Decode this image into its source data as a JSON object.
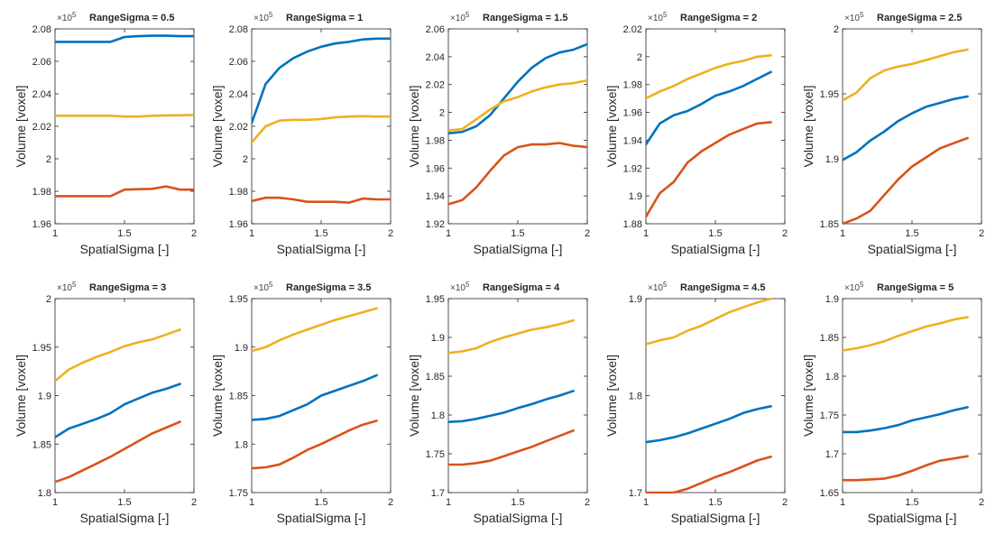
{
  "figure": {
    "background": "#ffffff"
  },
  "colors": {
    "series1": "#0072bd",
    "series2": "#edb120",
    "series3": "#d95319",
    "axis": "#262626"
  },
  "chart_data": [
    {
      "type": "line",
      "title": "RangeSigma = 0.5",
      "xlabel": "SpatialSigma [-]",
      "ylabel": "Volume [voxel]",
      "exponent_label": "×10^5",
      "xlim": [
        1,
        2
      ],
      "ylim": [
        1.96,
        2.08
      ],
      "xticks": [
        1,
        1.5,
        2
      ],
      "xtick_labels": [
        "1",
        "1.5",
        "2"
      ],
      "yticks": [
        1.96,
        1.98,
        2,
        2.02,
        2.04,
        2.06,
        2.08
      ],
      "ytick_labels": [
        "1.96",
        "1.98",
        "2",
        "2.02",
        "2.04",
        "2.06",
        "2.08"
      ],
      "x": [
        1,
        1.1,
        1.2,
        1.3,
        1.4,
        1.5,
        1.6,
        1.7,
        1.8,
        1.9,
        2
      ],
      "series": [
        {
          "color": "#0072bd",
          "values": [
            2.072,
            2.072,
            2.072,
            2.072,
            2.072,
            2.075,
            2.0755,
            2.0758,
            2.0758,
            2.0755,
            2.0755
          ]
        },
        {
          "color": "#edb120",
          "values": [
            2.0265,
            2.0265,
            2.0265,
            2.0265,
            2.0265,
            2.026,
            2.026,
            2.0265,
            2.0267,
            2.0268,
            2.027
          ]
        },
        {
          "color": "#d95319",
          "values": [
            1.977,
            1.977,
            1.977,
            1.977,
            1.977,
            1.981,
            1.9813,
            1.9815,
            1.983,
            1.981,
            1.981
          ]
        }
      ]
    },
    {
      "type": "line",
      "title": "RangeSigma = 1",
      "xlabel": "",
      "ylabel": "",
      "exponent_label": "×10^5",
      "xlim": [
        1,
        2
      ],
      "ylim": [
        1.96,
        2.08
      ],
      "xticks": [
        1,
        1.5,
        2
      ],
      "xtick_labels": [
        "1",
        "1.5",
        "2"
      ],
      "yticks": [
        1.96,
        1.98,
        2,
        2.02,
        2.04,
        2.06,
        2.08
      ],
      "ytick_labels": [
        "1.96",
        "1.98",
        "2",
        "2.02",
        "2.04",
        "2.06",
        "2.08"
      ],
      "x": [
        1,
        1.1,
        1.2,
        1.3,
        1.4,
        1.5,
        1.6,
        1.7,
        1.8,
        1.9,
        2
      ],
      "series": [
        {
          "color": "#0072bd",
          "values": [
            2.022,
            2.046,
            2.056,
            2.062,
            2.066,
            2.069,
            2.071,
            2.072,
            2.0735,
            2.074,
            2.074
          ]
        },
        {
          "color": "#edb120",
          "values": [
            2.01,
            2.02,
            2.0235,
            2.024,
            2.024,
            2.0245,
            2.0255,
            2.026,
            2.0262,
            2.026,
            2.026
          ]
        },
        {
          "color": "#d95319",
          "values": [
            1.974,
            1.976,
            1.976,
            1.975,
            1.9735,
            1.9735,
            1.9735,
            1.973,
            1.9755,
            1.975,
            1.975
          ]
        }
      ]
    },
    {
      "type": "line",
      "title": "RangeSigma = 1.5",
      "xlabel": "",
      "ylabel": "",
      "exponent_label": "×10^5",
      "xlim": [
        1,
        2
      ],
      "ylim": [
        1.92,
        2.06
      ],
      "xticks": [
        1,
        1.5,
        2
      ],
      "xtick_labels": [
        "1",
        "1.5",
        "2"
      ],
      "yticks": [
        1.92,
        1.94,
        1.96,
        1.98,
        2,
        2.02,
        2.04,
        2.06
      ],
      "ytick_labels": [
        "1.92",
        "1.94",
        "1.96",
        "1.98",
        "2",
        "2.02",
        "2.04",
        "2.06"
      ],
      "x": [
        1,
        1.1,
        1.2,
        1.3,
        1.4,
        1.5,
        1.6,
        1.7,
        1.8,
        1.9,
        2
      ],
      "series": [
        {
          "color": "#0072bd",
          "values": [
            1.985,
            1.986,
            1.99,
            1.998,
            2.01,
            2.022,
            2.032,
            2.039,
            2.043,
            2.045,
            2.049
          ]
        },
        {
          "color": "#edb120",
          "values": [
            1.987,
            1.988,
            1.995,
            2.002,
            2.008,
            2.011,
            2.015,
            2.018,
            2.02,
            2.021,
            2.023
          ]
        },
        {
          "color": "#d95319",
          "values": [
            1.934,
            1.937,
            1.946,
            1.958,
            1.969,
            1.975,
            1.977,
            1.977,
            1.978,
            1.976,
            1.975
          ]
        }
      ]
    },
    {
      "type": "line",
      "title": "RangeSigma = 2",
      "xlabel": "",
      "ylabel": "",
      "exponent_label": "×10^5",
      "xlim": [
        1,
        2
      ],
      "ylim": [
        1.88,
        2.02
      ],
      "xticks": [
        1,
        1.5,
        2
      ],
      "xtick_labels": [
        "1",
        "1.5",
        "2"
      ],
      "yticks": [
        1.88,
        1.9,
        1.92,
        1.94,
        1.96,
        1.98,
        2,
        2.02
      ],
      "ytick_labels": [
        "1.88",
        "1.9",
        "1.92",
        "1.94",
        "1.96",
        "1.98",
        "2",
        "2.02"
      ],
      "x": [
        1,
        1.1,
        1.2,
        1.3,
        1.4,
        1.5,
        1.6,
        1.7,
        1.8,
        1.9
      ],
      "series": [
        {
          "color": "#0072bd",
          "values": [
            1.937,
            1.952,
            1.958,
            1.961,
            1.966,
            1.972,
            1.975,
            1.979,
            1.984,
            1.989
          ]
        },
        {
          "color": "#edb120",
          "values": [
            1.97,
            1.975,
            1.979,
            1.984,
            1.988,
            1.992,
            1.995,
            1.997,
            2.0,
            2.001
          ]
        },
        {
          "color": "#d95319",
          "values": [
            1.885,
            1.902,
            1.91,
            1.924,
            1.932,
            1.938,
            1.944,
            1.948,
            1.952,
            1.953
          ]
        }
      ]
    },
    {
      "type": "line",
      "title": "RangeSigma = 2.5",
      "xlabel": "",
      "ylabel": "",
      "exponent_label": "×10^5",
      "xlim": [
        1,
        2
      ],
      "ylim": [
        1.85,
        2.0
      ],
      "xticks": [
        1,
        1.5,
        2
      ],
      "xtick_labels": [
        "1",
        "1.5",
        "2"
      ],
      "yticks": [
        1.85,
        1.9,
        1.95,
        2
      ],
      "ytick_labels": [
        "1.85",
        "1.9",
        "1.95",
        "2"
      ],
      "x": [
        1,
        1.1,
        1.2,
        1.3,
        1.4,
        1.5,
        1.6,
        1.7,
        1.8,
        1.9
      ],
      "series": [
        {
          "color": "#0072bd",
          "values": [
            1.899,
            1.905,
            1.914,
            1.921,
            1.929,
            1.935,
            1.94,
            1.943,
            1.946,
            1.948
          ]
        },
        {
          "color": "#edb120",
          "values": [
            1.945,
            1.951,
            1.962,
            1.968,
            1.971,
            1.973,
            1.976,
            1.979,
            1.982,
            1.984
          ]
        },
        {
          "color": "#d95319",
          "values": [
            1.85,
            1.854,
            1.86,
            1.872,
            1.884,
            1.894,
            1.901,
            1.908,
            1.912,
            1.916
          ]
        }
      ]
    },
    {
      "type": "line",
      "title": "RangeSigma = 3",
      "xlabel": "",
      "ylabel": "",
      "exponent_label": "×10^5",
      "xlim": [
        1,
        2
      ],
      "ylim": [
        1.8,
        2.0
      ],
      "xticks": [
        1,
        1.5,
        2
      ],
      "xtick_labels": [
        "1",
        "1.5",
        "2"
      ],
      "yticks": [
        1.8,
        1.85,
        1.9,
        1.95,
        2
      ],
      "ytick_labels": [
        "1.8",
        "1.85",
        "1.9",
        "1.95",
        "2"
      ],
      "x": [
        1,
        1.1,
        1.2,
        1.3,
        1.4,
        1.5,
        1.6,
        1.7,
        1.8,
        1.9
      ],
      "series": [
        {
          "color": "#0072bd",
          "values": [
            1.857,
            1.866,
            1.871,
            1.876,
            1.882,
            1.891,
            1.897,
            1.903,
            1.907,
            1.912
          ]
        },
        {
          "color": "#edb120",
          "values": [
            1.915,
            1.927,
            1.934,
            1.94,
            1.945,
            1.951,
            1.955,
            1.958,
            1.963,
            1.968
          ]
        },
        {
          "color": "#d95319",
          "values": [
            1.811,
            1.816,
            1.823,
            1.83,
            1.837,
            1.845,
            1.853,
            1.861,
            1.867,
            1.873
          ]
        }
      ]
    },
    {
      "type": "line",
      "title": "RangeSigma = 3.5",
      "xlabel": "",
      "ylabel": "",
      "exponent_label": "×10^5",
      "xlim": [
        1,
        2
      ],
      "ylim": [
        1.75,
        1.95
      ],
      "xticks": [
        1,
        1.5,
        2
      ],
      "xtick_labels": [
        "1",
        "1.5",
        "2"
      ],
      "yticks": [
        1.75,
        1.8,
        1.85,
        1.9,
        1.95
      ],
      "ytick_labels": [
        "1.75",
        "1.8",
        "1.85",
        "1.9",
        "1.95"
      ],
      "x": [
        1,
        1.1,
        1.2,
        1.3,
        1.4,
        1.5,
        1.6,
        1.7,
        1.8,
        1.9
      ],
      "series": [
        {
          "color": "#0072bd",
          "values": [
            1.825,
            1.826,
            1.829,
            1.835,
            1.841,
            1.85,
            1.855,
            1.86,
            1.865,
            1.871
          ]
        },
        {
          "color": "#edb120",
          "values": [
            1.896,
            1.9,
            1.907,
            1.913,
            1.918,
            1.923,
            1.928,
            1.932,
            1.936,
            1.94
          ]
        },
        {
          "color": "#d95319",
          "values": [
            1.775,
            1.776,
            1.779,
            1.786,
            1.794,
            1.8,
            1.807,
            1.814,
            1.82,
            1.824
          ]
        }
      ]
    },
    {
      "type": "line",
      "title": "RangeSigma = 4",
      "xlabel": "",
      "ylabel": "",
      "exponent_label": "×10^5",
      "xlim": [
        1,
        2
      ],
      "ylim": [
        1.7,
        1.95
      ],
      "xticks": [
        1,
        1.5,
        2
      ],
      "xtick_labels": [
        "1",
        "1.5",
        "2"
      ],
      "yticks": [
        1.7,
        1.75,
        1.8,
        1.85,
        1.9,
        1.95
      ],
      "ytick_labels": [
        "1.7",
        "1.75",
        "1.8",
        "1.85",
        "1.9",
        "1.95"
      ],
      "x": [
        1,
        1.1,
        1.2,
        1.3,
        1.4,
        1.5,
        1.6,
        1.7,
        1.8,
        1.9
      ],
      "series": [
        {
          "color": "#0072bd",
          "values": [
            1.791,
            1.792,
            1.795,
            1.799,
            1.803,
            1.809,
            1.814,
            1.82,
            1.825,
            1.831
          ]
        },
        {
          "color": "#edb120",
          "values": [
            1.88,
            1.882,
            1.886,
            1.894,
            1.9,
            1.905,
            1.91,
            1.913,
            1.917,
            1.922
          ]
        },
        {
          "color": "#d95319",
          "values": [
            1.736,
            1.736,
            1.738,
            1.741,
            1.747,
            1.753,
            1.759,
            1.766,
            1.773,
            1.78
          ]
        }
      ]
    },
    {
      "type": "line",
      "title": "RangeSigma = 4.5",
      "xlabel": "",
      "ylabel": "",
      "exponent_label": "×10^5",
      "xlim": [
        1,
        2
      ],
      "ylim": [
        1.7,
        1.9
      ],
      "xticks": [
        1,
        1.5,
        2
      ],
      "xtick_labels": [
        "1",
        "1.5",
        "2"
      ],
      "yticks": [
        1.7,
        1.8,
        1.9
      ],
      "ytick_labels": [
        "1.7",
        "1.8",
        "1.9"
      ],
      "x": [
        1,
        1.1,
        1.2,
        1.3,
        1.4,
        1.5,
        1.6,
        1.7,
        1.8,
        1.9
      ],
      "series": [
        {
          "color": "#0072bd",
          "values": [
            1.752,
            1.754,
            1.757,
            1.761,
            1.766,
            1.771,
            1.776,
            1.782,
            1.786,
            1.789
          ]
        },
        {
          "color": "#edb120",
          "values": [
            1.853,
            1.857,
            1.86,
            1.867,
            1.872,
            1.879,
            1.886,
            1.891,
            1.896,
            1.9
          ]
        },
        {
          "color": "#d95319",
          "values": [
            1.7,
            1.7,
            1.7,
            1.704,
            1.71,
            1.716,
            1.721,
            1.727,
            1.733,
            1.737
          ]
        }
      ]
    },
    {
      "type": "line",
      "title": "RangeSigma = 5",
      "xlabel": "",
      "ylabel": "",
      "exponent_label": "×10^5",
      "xlim": [
        1,
        2
      ],
      "ylim": [
        1.65,
        1.9
      ],
      "xticks": [
        1,
        1.5,
        2
      ],
      "xtick_labels": [
        "1",
        "1.5",
        "2"
      ],
      "yticks": [
        1.65,
        1.7,
        1.75,
        1.8,
        1.85,
        1.9
      ],
      "ytick_labels": [
        "1.65",
        "1.7",
        "1.75",
        "1.8",
        "1.85",
        "1.9"
      ],
      "x": [
        1,
        1.1,
        1.2,
        1.3,
        1.4,
        1.5,
        1.6,
        1.7,
        1.8,
        1.9
      ],
      "series": [
        {
          "color": "#0072bd",
          "values": [
            1.728,
            1.728,
            1.73,
            1.733,
            1.737,
            1.743,
            1.747,
            1.751,
            1.756,
            1.76
          ]
        },
        {
          "color": "#edb120",
          "values": [
            1.833,
            1.836,
            1.84,
            1.845,
            1.852,
            1.858,
            1.864,
            1.868,
            1.873,
            1.876
          ]
        },
        {
          "color": "#d95319",
          "values": [
            1.666,
            1.666,
            1.667,
            1.668,
            1.672,
            1.678,
            1.685,
            1.691,
            1.694,
            1.697
          ]
        }
      ]
    }
  ],
  "shared_labels": {
    "xlabel": "SpatialSigma [-]",
    "ylabel": "Volume [voxel]"
  }
}
